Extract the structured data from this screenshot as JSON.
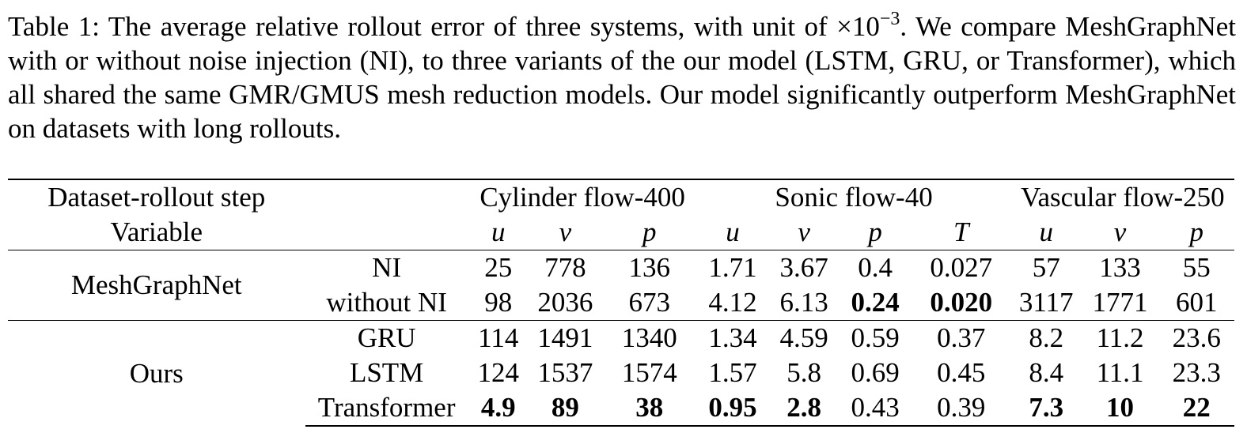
{
  "caption": {
    "label": "Table 1:",
    "text_before_exp": "The average relative rollout error of three systems, with unit of ×10",
    "exponent": "−3",
    "text_after_exp": ".  We compare MeshGraphNet with or without noise injection (NI), to three variants of the our model (LSTM, GRU, or Transformer), which all shared the same GMR/GMUS mesh reduction models. Our model significantly outperform MeshGraphNet on datasets with long rollouts."
  },
  "table": {
    "header_dataset_label": "Dataset-rollout step",
    "header_variable_label": "Variable",
    "datasets": [
      "Cylinder flow-400",
      "Sonic flow-40",
      "Vascular flow-250"
    ],
    "variables": [
      "u",
      "v",
      "p",
      "u",
      "v",
      "p",
      "T",
      "u",
      "v",
      "p"
    ],
    "groups": [
      {
        "name": "MeshGraphNet",
        "rows": [
          {
            "method": "NI",
            "values": [
              "25",
              "778",
              "136",
              "1.71",
              "3.67",
              "0.4",
              "0.027",
              "57",
              "133",
              "55"
            ],
            "bold": [
              false,
              false,
              false,
              false,
              false,
              false,
              false,
              false,
              false,
              false
            ]
          },
          {
            "method": "without NI",
            "values": [
              "98",
              "2036",
              "673",
              "4.12",
              "6.13",
              "0.24",
              "0.020",
              "3117",
              "1771",
              "601"
            ],
            "bold": [
              false,
              false,
              false,
              false,
              false,
              true,
              true,
              false,
              false,
              false
            ]
          }
        ]
      },
      {
        "name": "Ours",
        "rows": [
          {
            "method": "GRU",
            "values": [
              "114",
              "1491",
              "1340",
              "1.34",
              "4.59",
              "0.59",
              "0.37",
              "8.2",
              "11.2",
              "23.6"
            ],
            "bold": [
              false,
              false,
              false,
              false,
              false,
              false,
              false,
              false,
              false,
              false
            ]
          },
          {
            "method": "LSTM",
            "values": [
              "124",
              "1537",
              "1574",
              "1.57",
              "5.8",
              "0.69",
              "0.45",
              "8.4",
              "11.1",
              "23.3"
            ],
            "bold": [
              false,
              false,
              false,
              false,
              false,
              false,
              false,
              false,
              false,
              false
            ]
          },
          {
            "method": "Transformer",
            "values": [
              "4.9",
              "89",
              "38",
              "0.95",
              "2.8",
              "0.43",
              "0.39",
              "7.3",
              "10",
              "22"
            ],
            "bold": [
              true,
              true,
              true,
              true,
              true,
              false,
              false,
              true,
              true,
              true
            ]
          }
        ]
      }
    ]
  }
}
